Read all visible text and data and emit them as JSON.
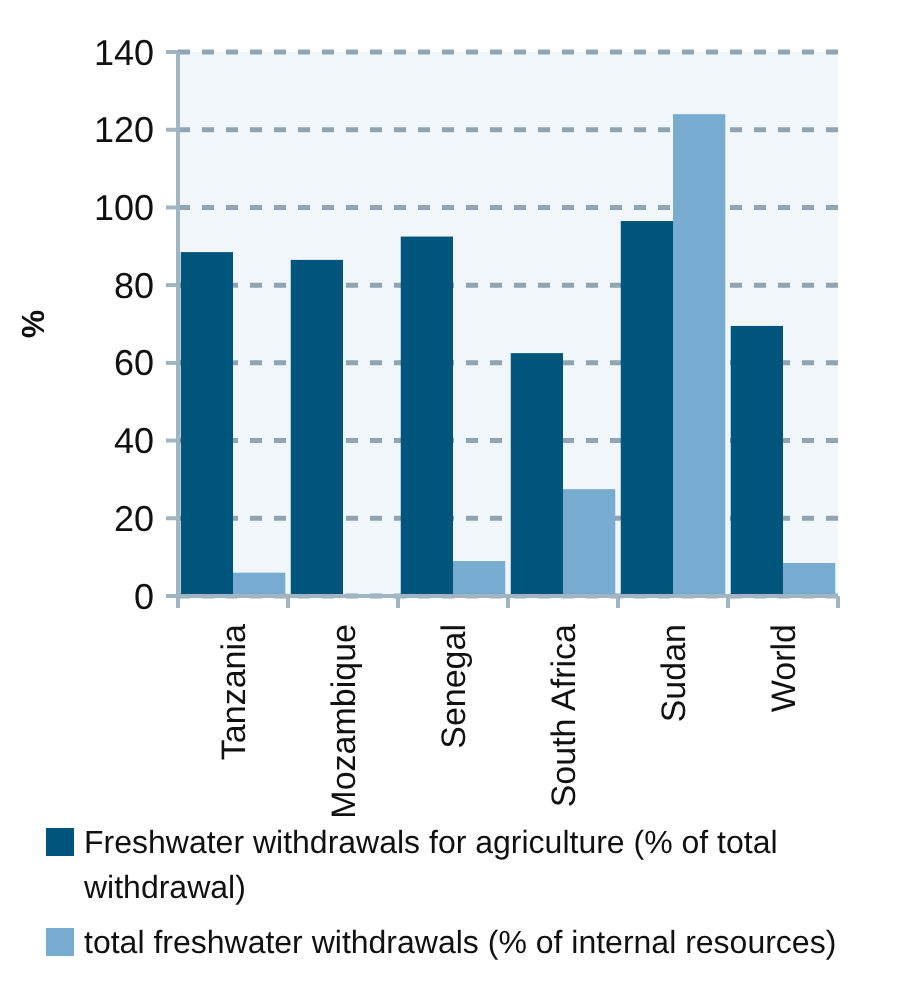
{
  "chart_data": {
    "type": "bar",
    "ylabel": "%",
    "categories": [
      "Tanzania",
      "Mozambique",
      "Senegal",
      "South Africa",
      "Sudan",
      "World"
    ],
    "series": [
      {
        "name": "Freshwater withdrawals for agriculture (% of total withdrawal)",
        "color": "#00557d",
        "values": [
          88.5,
          86.5,
          92.5,
          62.5,
          96.5,
          69.5
        ]
      },
      {
        "name": "total freshwater withdrawals (% of internal resources)",
        "color": "#77acd0",
        "values": [
          6,
          0,
          9,
          27.5,
          124,
          8.5
        ]
      }
    ],
    "ylim": [
      0,
      140
    ],
    "yticks": [
      0,
      20,
      40,
      60,
      80,
      100,
      120,
      140
    ],
    "grid": "y",
    "legend": "bottom"
  }
}
